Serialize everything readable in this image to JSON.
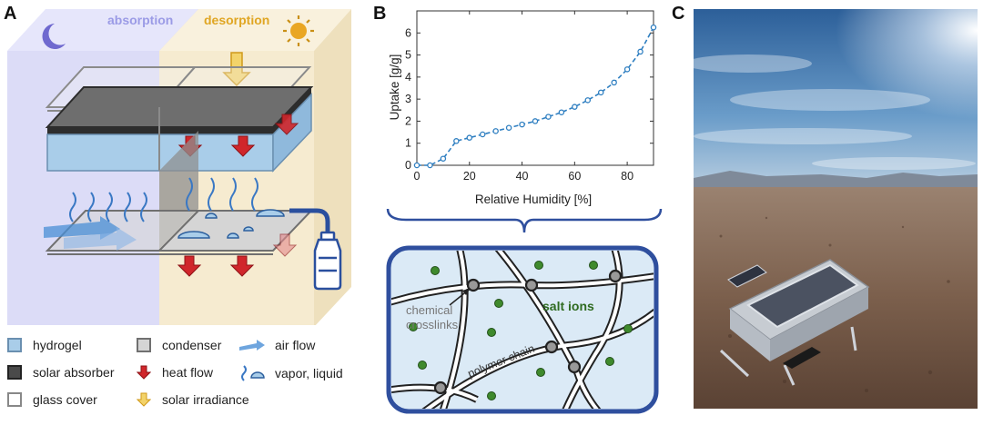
{
  "panels": {
    "a": "A",
    "b": "B",
    "c": "C"
  },
  "panelA": {
    "absorption_label": "absorption",
    "desorption_label": "desorption",
    "legend": {
      "hydrogel": "hydrogel",
      "solar_absorber": "solar absorber",
      "glass_cover": "glass cover",
      "condenser": "condenser",
      "heat_flow": "heat flow",
      "solar_irradiance": "solar irradiance",
      "air_flow": "air flow",
      "vapor_liquid": "vapor, liquid"
    }
  },
  "panelB": {
    "inset": {
      "chemical_crosslinks": "chemical crosslinks",
      "salt_ions": "salt ions",
      "polymer_chain": "polymer chain"
    }
  },
  "chart_data": {
    "type": "line",
    "title": "",
    "xlabel": "Relative Humidity [%]",
    "ylabel": "Uptake [g/g]",
    "xlim": [
      0,
      90
    ],
    "ylim": [
      0,
      7
    ],
    "xticks": [
      0,
      20,
      40,
      60,
      80
    ],
    "yticks": [
      0,
      1,
      2,
      3,
      4,
      5,
      6
    ],
    "grid": false,
    "series": [
      {
        "x": [
          0,
          5,
          10,
          15,
          20,
          25,
          30,
          35,
          40,
          45,
          50,
          55,
          60,
          65,
          70,
          75,
          80,
          85,
          90
        ],
        "values": [
          0.0,
          0.0,
          0.3,
          1.1,
          1.25,
          1.4,
          1.55,
          1.7,
          1.85,
          2.0,
          2.2,
          2.4,
          2.65,
          2.95,
          3.3,
          3.75,
          4.35,
          5.15,
          6.25
        ]
      }
    ]
  },
  "colors": {
    "absorption_bg": "#dcdcf7",
    "desorption_bg": "#f6ebd0",
    "hydrogel": "#a9cde9",
    "absorber": "#3d3d3d",
    "heat_arrow": "#d0262b",
    "solar_arrow": "#e8b22c",
    "line_blue": "#2f7fc1",
    "inset_border": "#2f4f9e",
    "ion_green": "#3f8a2d"
  }
}
